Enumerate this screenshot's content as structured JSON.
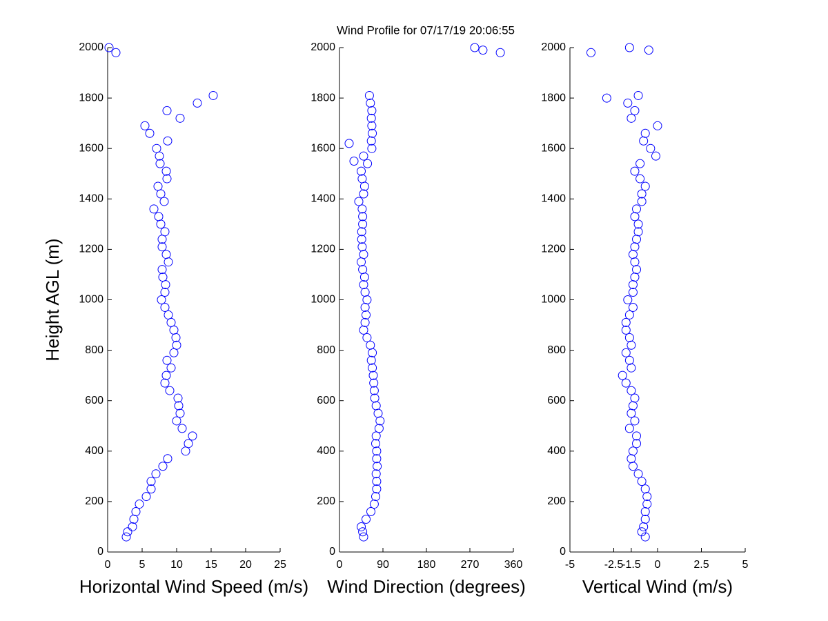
{
  "title": "Wind Profile for  07/17/19 20:06:55",
  "chart_data": [
    {
      "type": "scatter",
      "xlabel": "Horizontal Wind Speed (m/s)",
      "ylabel": "Height AGL (m)",
      "xlim": [
        0,
        25
      ],
      "xticks": [
        0,
        5,
        10,
        15,
        20,
        25
      ],
      "ylim": [
        0,
        2000
      ],
      "yticks": [
        0,
        200,
        400,
        600,
        800,
        1000,
        1200,
        1400,
        1600,
        1800,
        2000
      ],
      "series": [
        {
          "color": "#0000ff",
          "x": [
            2.7,
            2.9,
            3.6,
            3.8,
            4.1,
            4.6,
            5.6,
            6.3,
            6.3,
            7.0,
            8.0,
            8.7,
            11.3,
            11.7,
            12.3,
            10.8,
            10.0,
            10.5,
            10.3,
            10.2,
            9.0,
            8.3,
            8.5,
            9.2,
            8.6,
            9.6,
            10.0,
            9.9,
            9.6,
            9.2,
            8.8,
            8.3,
            7.8,
            8.3,
            8.4,
            8.0,
            7.9,
            8.8,
            8.5,
            7.9,
            7.9,
            8.3,
            7.7,
            7.4,
            6.7,
            8.2,
            7.7,
            7.3,
            8.6,
            8.5,
            7.6,
            7.5,
            7.1,
            8.7,
            6.1,
            5.4,
            10.5,
            8.6,
            13.0,
            15.3,
            1.2,
            0.2
          ],
          "values": [
            60,
            80,
            100,
            130,
            160,
            190,
            220,
            250,
            280,
            310,
            340,
            370,
            400,
            430,
            460,
            490,
            520,
            550,
            580,
            610,
            640,
            670,
            700,
            730,
            760,
            790,
            820,
            850,
            880,
            910,
            940,
            970,
            1000,
            1030,
            1060,
            1090,
            1120,
            1150,
            1180,
            1210,
            1240,
            1270,
            1300,
            1330,
            1360,
            1390,
            1420,
            1450,
            1480,
            1510,
            1540,
            1570,
            1600,
            1630,
            1660,
            1690,
            1720,
            1750,
            1780,
            1810,
            1980,
            2000
          ]
        }
      ]
    },
    {
      "type": "scatter",
      "xlabel": "Wind Direction (degrees)",
      "xlim": [
        0,
        360
      ],
      "xticks": [
        0,
        90,
        180,
        270,
        360
      ],
      "ylim": [
        0,
        2000
      ],
      "yticks": [
        0,
        200,
        400,
        600,
        800,
        1000,
        1200,
        1400,
        1600,
        1800,
        2000
      ],
      "series": [
        {
          "color": "#0000ff",
          "x": [
            50,
            48,
            45,
            55,
            65,
            72,
            75,
            77,
            77,
            76,
            78,
            77,
            77,
            75,
            76,
            82,
            84,
            80,
            76,
            73,
            72,
            71,
            70,
            68,
            66,
            68,
            64,
            57,
            50,
            53,
            55,
            53,
            57,
            53,
            50,
            52,
            48,
            45,
            50,
            47,
            46,
            46,
            48,
            48,
            47,
            40,
            50,
            52,
            47,
            45,
            58,
            50,
            67,
            66,
            68,
            67,
            66,
            67,
            64,
            62,
            20,
            30,
            280,
            297,
            333
          ],
          "values": [
            60,
            80,
            100,
            130,
            160,
            190,
            220,
            250,
            280,
            310,
            340,
            370,
            400,
            430,
            460,
            490,
            520,
            550,
            580,
            610,
            640,
            670,
            700,
            730,
            760,
            790,
            820,
            850,
            880,
            910,
            940,
            970,
            1000,
            1030,
            1060,
            1090,
            1120,
            1150,
            1180,
            1210,
            1240,
            1270,
            1300,
            1330,
            1360,
            1390,
            1420,
            1450,
            1480,
            1510,
            1540,
            1570,
            1600,
            1630,
            1660,
            1690,
            1720,
            1750,
            1780,
            1810,
            1620,
            1550,
            2000,
            1990,
            1980
          ]
        }
      ]
    },
    {
      "type": "scatter",
      "xlabel": "Vertical Wind (m/s)",
      "xlim": [
        -5,
        5
      ],
      "xticks": [
        -5,
        -2.5,
        -1.5,
        0,
        2.5,
        5
      ],
      "ylim": [
        0,
        2000
      ],
      "yticks": [
        0,
        200,
        400,
        600,
        800,
        1000,
        1200,
        1400,
        1600,
        1800,
        2000
      ],
      "series": [
        {
          "color": "#0000ff",
          "x": [
            -0.7,
            -0.9,
            -0.8,
            -0.7,
            -0.7,
            -0.6,
            -0.6,
            -0.7,
            -0.9,
            -1.1,
            -1.4,
            -1.5,
            -1.4,
            -1.2,
            -1.2,
            -1.6,
            -1.3,
            -1.5,
            -1.4,
            -1.3,
            -1.5,
            -1.8,
            -2.0,
            -1.5,
            -1.6,
            -1.8,
            -1.5,
            -1.6,
            -1.8,
            -1.8,
            -1.6,
            -1.4,
            -1.7,
            -1.4,
            -1.4,
            -1.3,
            -1.2,
            -1.3,
            -1.4,
            -1.3,
            -1.2,
            -1.1,
            -1.1,
            -1.3,
            -1.2,
            -0.9,
            -0.9,
            -0.7,
            -1.0,
            -1.3,
            -1.0,
            -0.1,
            -0.4,
            -0.8,
            -0.7,
            0.0,
            -1.5,
            -1.3,
            -1.7,
            -1.1,
            -2.9,
            -3.8,
            -1.6,
            -0.5
          ],
          "values": [
            60,
            80,
            100,
            130,
            160,
            190,
            220,
            250,
            280,
            310,
            340,
            370,
            400,
            430,
            460,
            490,
            520,
            550,
            580,
            610,
            640,
            670,
            700,
            730,
            760,
            790,
            820,
            850,
            880,
            910,
            940,
            970,
            1000,
            1030,
            1060,
            1090,
            1120,
            1150,
            1180,
            1210,
            1240,
            1270,
            1300,
            1330,
            1360,
            1390,
            1420,
            1450,
            1480,
            1510,
            1540,
            1570,
            1600,
            1630,
            1660,
            1690,
            1720,
            1750,
            1780,
            1810,
            1800,
            1980,
            2000,
            1990
          ]
        }
      ]
    }
  ]
}
